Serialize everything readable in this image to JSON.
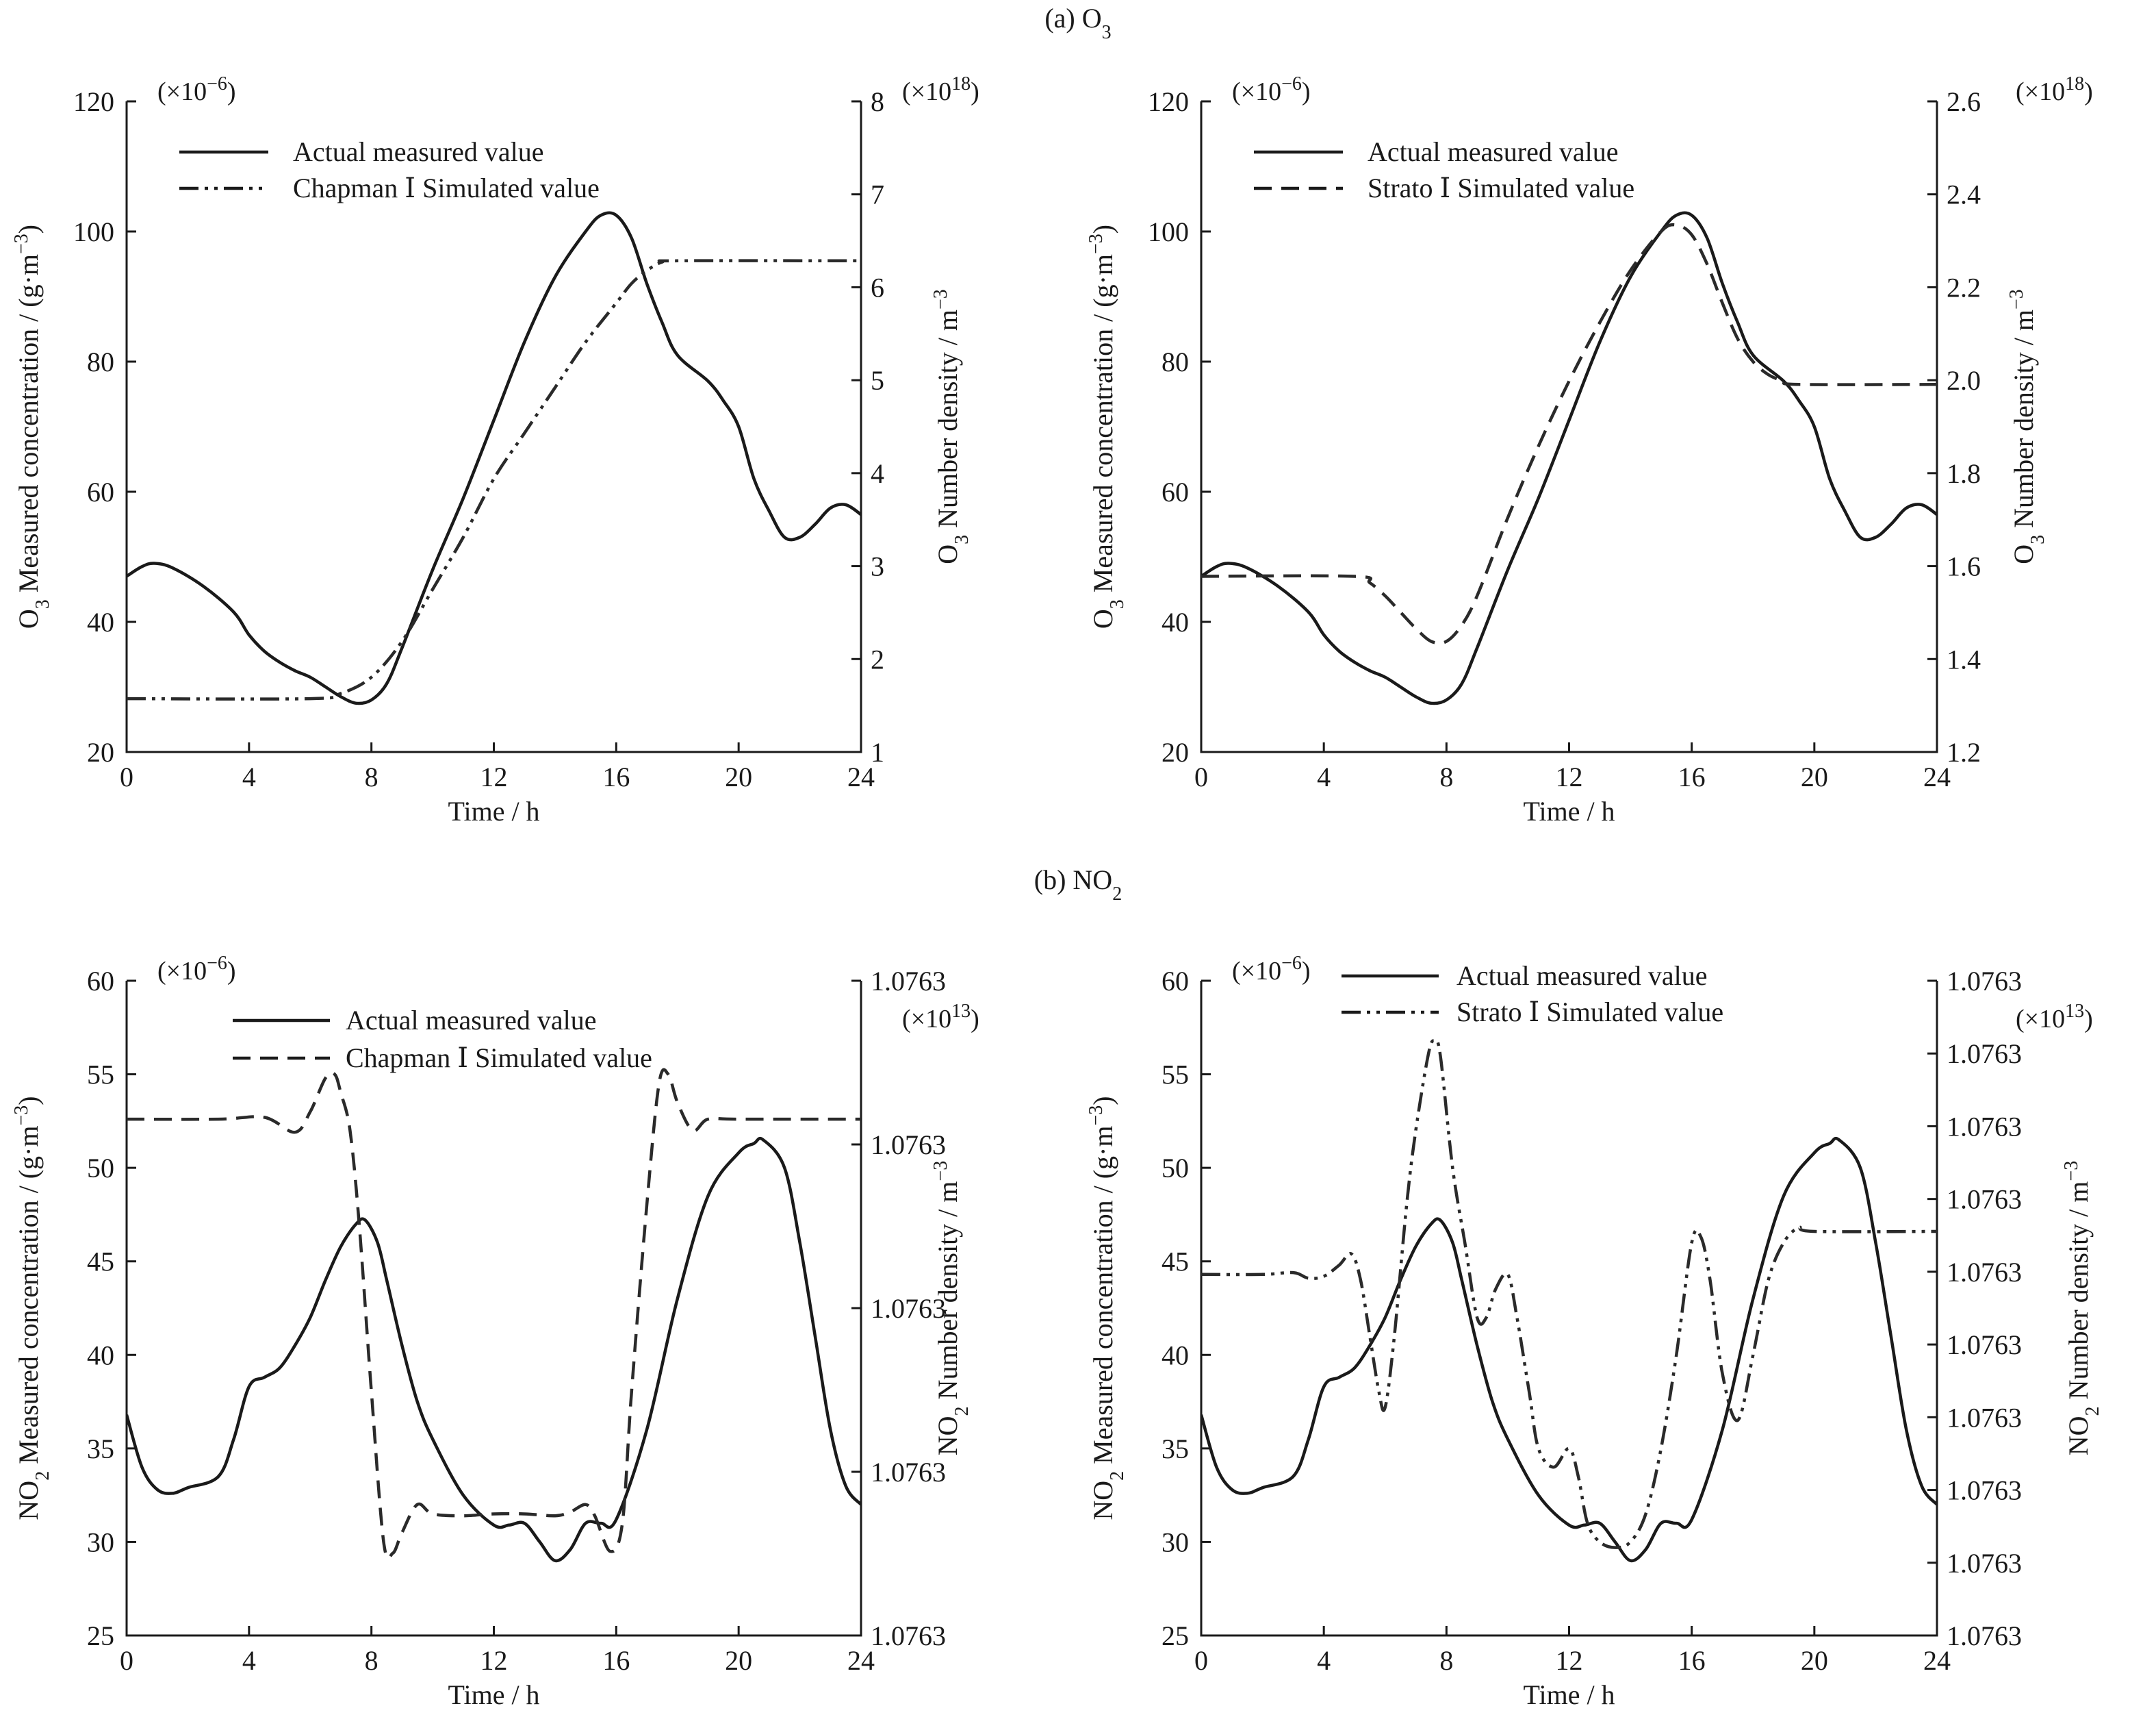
{
  "sections": [
    {
      "label_main": "(a) O",
      "label_sub": "3"
    },
    {
      "label_main": "(b) NO",
      "label_sub": "2"
    }
  ],
  "chart_data": [
    {
      "type": "line",
      "xlabel": "Time / h",
      "ylabel": {
        "pre": "O",
        "sub": "3",
        "mid": " Measured concentration / (g·m",
        "sup": "−3",
        "post": ")"
      },
      "ylabel_right": {
        "pre": "O",
        "sub": "3",
        "mid": " Number density / m",
        "sup": "−3",
        "post": ""
      },
      "left_multiplier": {
        "pre": "(×10",
        "sup": "−6",
        "post": ")"
      },
      "right_multiplier": {
        "pre": "(×10",
        "sup": "18",
        "post": ")"
      },
      "xlim": [
        0,
        24
      ],
      "ylim": [
        20,
        120
      ],
      "y2lim": [
        1,
        8
      ],
      "xticks": [
        "0",
        "4",
        "8",
        "12",
        "16",
        "20",
        "24"
      ],
      "yticks": [
        "20",
        "40",
        "60",
        "80",
        "100",
        "120"
      ],
      "y2ticks": [
        "1",
        "2",
        "3",
        "4",
        "5",
        "6",
        "7",
        "8"
      ],
      "series": [
        {
          "name": "Actual measured value",
          "style": "solid",
          "x": [
            0,
            0.5,
            0.9,
            1.5,
            2.5,
            3.5,
            4,
            4.5,
            5,
            5.5,
            6,
            6.5,
            7,
            7.5,
            8,
            8.5,
            9,
            10,
            11,
            12,
            13,
            14,
            15,
            15.5,
            16,
            16.5,
            17,
            17.5,
            18,
            19,
            19.5,
            20,
            20.5,
            21,
            21.5,
            22,
            22.5,
            23,
            23.5,
            24
          ],
          "y": [
            47,
            48.5,
            49,
            48.3,
            45.5,
            41.5,
            38,
            35.5,
            33.8,
            32.5,
            31.5,
            30,
            28.5,
            27.5,
            28,
            30.5,
            36,
            48,
            59,
            71,
            83,
            93,
            100,
            102.5,
            102.5,
            99,
            92,
            86,
            81,
            77,
            74,
            70,
            62,
            57,
            53,
            53,
            55,
            57.5,
            58,
            56.5
          ]
        },
        {
          "name": "Chapman Ⅰ Simulated value",
          "style": "dash-dot-dot",
          "x": [
            0,
            6,
            7,
            8,
            9,
            10,
            11,
            12,
            13,
            14,
            15,
            16,
            16.5,
            17,
            17.5,
            18,
            24
          ],
          "y": [
            28.2,
            28.2,
            29,
            31.5,
            37,
            45,
            53,
            62,
            69,
            76,
            83,
            89,
            92,
            94,
            95.3,
            95.5,
            95.5
          ]
        }
      ]
    },
    {
      "type": "line",
      "xlabel": "Time  / h",
      "ylabel": {
        "pre": "O",
        "sub": "3",
        "mid": " Measured concentration / (g·m",
        "sup": "−3",
        "post": ")"
      },
      "ylabel_right": {
        "pre": "O",
        "sub": "3",
        "mid": " Number density / m",
        "sup": "−3",
        "post": ""
      },
      "left_multiplier": {
        "pre": "(×10",
        "sup": "−6",
        "post": ")"
      },
      "right_multiplier": {
        "pre": "(×10",
        "sup": "18",
        "post": ")"
      },
      "xlim": [
        0,
        24
      ],
      "ylim": [
        20,
        120
      ],
      "y2lim": [
        1.2,
        2.6
      ],
      "xticks": [
        "0",
        "4",
        "8",
        "12",
        "16",
        "20",
        "24"
      ],
      "yticks": [
        "20",
        "40",
        "60",
        "80",
        "100",
        "120"
      ],
      "y2ticks": [
        "1.2",
        "1.4",
        "1.6",
        "1.8",
        "2.0",
        "2.2",
        "2.4",
        "2.6"
      ],
      "series": [
        {
          "name": "Actual measured value",
          "style": "solid",
          "x": [
            0,
            0.5,
            0.9,
            1.5,
            2.5,
            3.5,
            4,
            4.5,
            5,
            5.5,
            6,
            6.5,
            7,
            7.5,
            8,
            8.5,
            9,
            10,
            11,
            12,
            13,
            14,
            15,
            15.5,
            16,
            16.5,
            17,
            17.5,
            18,
            19,
            19.5,
            20,
            20.5,
            21,
            21.5,
            22,
            22.5,
            23,
            23.5,
            24
          ],
          "y": [
            47,
            48.5,
            49,
            48.3,
            45.5,
            41.5,
            38,
            35.5,
            33.8,
            32.5,
            31.5,
            30,
            28.5,
            27.5,
            28,
            30.5,
            36,
            48,
            59,
            71,
            83,
            93,
            100,
            102.5,
            102.5,
            99,
            92,
            86,
            81,
            77,
            74,
            70,
            62,
            57,
            53,
            53,
            55,
            57.5,
            58,
            56.5
          ]
        },
        {
          "name": "Strato Ⅰ Simulated value",
          "style": "dashed",
          "x": [
            0,
            5,
            5.5,
            6,
            6.5,
            7,
            7.5,
            8,
            8.5,
            9,
            10,
            11,
            12,
            13,
            14,
            15,
            15.5,
            16,
            16.5,
            17,
            17.5,
            18,
            18.5,
            19,
            19.5,
            24
          ],
          "y": [
            47,
            47,
            46,
            44,
            41.5,
            39,
            37,
            37,
            39.5,
            44,
            56,
            67,
            77,
            86,
            94,
            100,
            101,
            99.5,
            95,
            89,
            83.5,
            80,
            78,
            77,
            76.5,
            76.5
          ]
        }
      ]
    },
    {
      "type": "line",
      "xlabel": "Time  / h",
      "ylabel": {
        "pre": "NO",
        "sub": "2",
        "mid": " Measured concentration / (g·m",
        "sup": "−3",
        "post": ")"
      },
      "ylabel_right": {
        "pre": "NO",
        "sub": "2",
        "mid": " Number density / m",
        "sup": "−3",
        "post": ""
      },
      "left_multiplier": {
        "pre": "(×10",
        "sup": "−6",
        "post": ")"
      },
      "right_multiplier": {
        "pre": "(×10",
        "sup": "13",
        "post": ")"
      },
      "xlim": [
        0,
        24
      ],
      "ylim": [
        25,
        60
      ],
      "xticks": [
        "0",
        "4",
        "8",
        "12",
        "16",
        "20",
        "24"
      ],
      "yticks": [
        "25",
        "30",
        "35",
        "40",
        "45",
        "50",
        "55",
        "60"
      ],
      "y2ticks": [
        "1.0763",
        "1.0763",
        "1.0763",
        "1.0763",
        "1.0763"
      ],
      "series": [
        {
          "name": "Actual measured value",
          "style": "solid",
          "x": [
            0,
            0.5,
            1,
            1.5,
            2,
            3,
            3.5,
            4,
            4.5,
            5,
            5.5,
            6,
            6.5,
            7,
            7.5,
            7.8,
            8.2,
            8.5,
            9,
            9.5,
            10,
            11,
            12,
            12.5,
            13,
            13.5,
            14,
            14.5,
            15,
            15.5,
            16,
            17,
            18,
            19,
            20,
            20.5,
            20.8,
            21.5,
            22,
            22.5,
            23,
            23.5,
            24
          ],
          "y": [
            36.8,
            34,
            32.8,
            32.6,
            32.9,
            33.5,
            35.5,
            38.3,
            38.8,
            39.3,
            40.5,
            42,
            44,
            45.8,
            47,
            47.2,
            46,
            44,
            40.5,
            37.5,
            35.5,
            32.5,
            30.9,
            30.9,
            31,
            30,
            29,
            29.6,
            31,
            31,
            31.2,
            36,
            43,
            48.5,
            50.8,
            51.3,
            51.5,
            50,
            46,
            41,
            36,
            33,
            32
          ]
        },
        {
          "name": "Chapman Ⅰ Simulated value",
          "style": "dashed",
          "x": [
            0,
            3,
            4.5,
            5.5,
            6,
            6.5,
            6.8,
            7,
            7.3,
            7.6,
            8,
            8.4,
            8.7,
            9,
            9.5,
            10,
            11,
            12,
            13,
            14,
            14.5,
            15,
            15.3,
            15.8,
            16.2,
            16.5,
            17,
            17.4,
            17.7,
            18,
            18.5,
            19,
            20,
            24
          ],
          "y": [
            52.6,
            52.6,
            52.7,
            51.9,
            53,
            54.8,
            55,
            54,
            52,
            47,
            38,
            30,
            29.4,
            30.5,
            32,
            31.5,
            31.4,
            31.5,
            31.5,
            31.4,
            31.6,
            32,
            31.4,
            29.5,
            31,
            38,
            48,
            54.5,
            55,
            53.5,
            52,
            52.6,
            52.6,
            52.6
          ]
        }
      ]
    },
    {
      "type": "line",
      "xlabel": "Time  / h",
      "ylabel": {
        "pre": "NO",
        "sub": "2",
        "mid": " Measured concentration / (g·m",
        "sup": "−3",
        "post": ")"
      },
      "ylabel_right": {
        "pre": "NO",
        "sub": "2",
        "mid": " Number density / m",
        "sup": "−3",
        "post": ""
      },
      "left_multiplier": {
        "pre": "(×10",
        "sup": "−6",
        "post": ")"
      },
      "right_multiplier": {
        "pre": "(×10",
        "sup": "13",
        "post": ")"
      },
      "xlim": [
        0,
        24
      ],
      "ylim": [
        25,
        60
      ],
      "xticks": [
        "0",
        "4",
        "8",
        "12",
        "16",
        "20",
        "24"
      ],
      "yticks": [
        "25",
        "30",
        "35",
        "40",
        "45",
        "50",
        "55",
        "60"
      ],
      "y2ticks": [
        "1.0763",
        "1.0763",
        "1.0763",
        "1.0763",
        "1.0763",
        "1.0763",
        "1.0763",
        "1.0763",
        "1.0763",
        "1.0763"
      ],
      "series": [
        {
          "name": "Actual measured value",
          "style": "solid",
          "x": [
            0,
            0.5,
            1,
            1.5,
            2,
            3,
            3.5,
            4,
            4.5,
            5,
            5.5,
            6,
            6.5,
            7,
            7.5,
            7.8,
            8.2,
            8.5,
            9,
            9.5,
            10,
            11,
            12,
            12.5,
            13,
            13.5,
            14,
            14.5,
            15,
            15.5,
            16,
            17,
            18,
            19,
            20,
            20.5,
            20.8,
            21.5,
            22,
            22.5,
            23,
            23.5,
            24
          ],
          "y": [
            36.8,
            34,
            32.8,
            32.6,
            32.9,
            33.5,
            35.5,
            38.3,
            38.8,
            39.3,
            40.5,
            42,
            44,
            45.8,
            47,
            47.2,
            46,
            44,
            40.5,
            37.5,
            35.5,
            32.5,
            30.9,
            30.9,
            31,
            30,
            29,
            29.6,
            31,
            31,
            31.2,
            36,
            43,
            48.5,
            50.8,
            51.3,
            51.5,
            50,
            46,
            41,
            36,
            33,
            32
          ]
        },
        {
          "name": "Strato Ⅰ Simulated value",
          "style": "dash-dot-dot",
          "x": [
            0,
            2,
            3,
            3.5,
            4,
            4.5,
            4.9,
            5.2,
            5.5,
            5.8,
            6,
            6.3,
            6.7,
            7,
            7.4,
            7.6,
            7.8,
            8.2,
            8.6,
            9,
            9.3,
            9.6,
            10,
            10.3,
            10.7,
            11,
            11.5,
            12,
            12.3,
            12.6,
            13,
            13.5,
            14,
            14.5,
            15,
            15.5,
            16,
            16.3,
            16.6,
            17,
            17.5,
            18,
            18.5,
            19,
            19.5,
            20,
            24
          ],
          "y": [
            44.3,
            44.3,
            44.4,
            44.1,
            44.2,
            44.8,
            45.4,
            44,
            41,
            38,
            37.2,
            41,
            48,
            52,
            56,
            56.8,
            56,
            50,
            46,
            42,
            42,
            43.5,
            44.3,
            42,
            38,
            35,
            34,
            35,
            33.5,
            31,
            30,
            29.7,
            30,
            31.5,
            35,
            40,
            46,
            46.3,
            44,
            39,
            36.5,
            40,
            44,
            46,
            46.8,
            46.6,
            46.6
          ]
        }
      ]
    }
  ]
}
